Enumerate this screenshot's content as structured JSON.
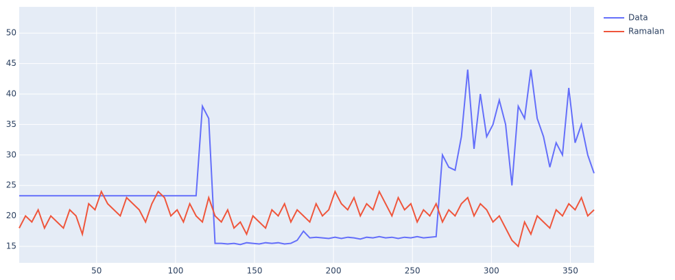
{
  "chart_data": {
    "type": "line",
    "x": [
      1,
      5,
      9,
      13,
      17,
      21,
      25,
      29,
      33,
      37,
      41,
      45,
      49,
      53,
      57,
      61,
      65,
      69,
      73,
      77,
      81,
      85,
      89,
      93,
      97,
      101,
      105,
      109,
      113,
      117,
      121,
      125,
      129,
      133,
      137,
      141,
      145,
      149,
      153,
      157,
      161,
      165,
      169,
      173,
      177,
      181,
      185,
      189,
      193,
      197,
      201,
      205,
      209,
      213,
      217,
      221,
      225,
      229,
      233,
      237,
      241,
      245,
      249,
      253,
      257,
      261,
      265,
      269,
      273,
      277,
      281,
      285,
      289,
      293,
      297,
      301,
      305,
      309,
      313,
      317,
      321,
      325,
      329,
      333,
      337,
      341,
      345,
      349,
      353,
      357,
      361,
      365
    ],
    "series": [
      {
        "name": "Data",
        "color": "#636efa",
        "values": [
          23.3,
          23.3,
          23.3,
          23.3,
          23.3,
          23.3,
          23.3,
          23.3,
          23.3,
          23.3,
          23.3,
          23.3,
          23.3,
          23.3,
          23.3,
          23.3,
          23.3,
          23.3,
          23.3,
          23.3,
          23.3,
          23.3,
          23.3,
          23.3,
          23.3,
          23.3,
          23.3,
          23.3,
          23.3,
          38,
          36,
          15.5,
          15.5,
          15.4,
          15.5,
          15.3,
          15.6,
          15.5,
          15.4,
          15.6,
          15.5,
          15.6,
          15.4,
          15.5,
          16,
          17.5,
          16.4,
          16.5,
          16.4,
          16.3,
          16.5,
          16.3,
          16.5,
          16.4,
          16.2,
          16.5,
          16.4,
          16.6,
          16.4,
          16.5,
          16.3,
          16.5,
          16.4,
          16.6,
          16.4,
          16.5,
          16.6,
          30,
          28,
          27.5,
          33,
          44,
          31,
          40,
          33,
          35,
          39,
          35,
          25,
          38,
          36,
          44,
          36,
          33,
          28,
          32,
          30,
          41,
          32,
          35,
          30,
          27
        ]
      },
      {
        "name": "Ramalan",
        "color": "#ef553b",
        "values": [
          18,
          20,
          19,
          21,
          18,
          20,
          19,
          18,
          21,
          20,
          17,
          22,
          21,
          24,
          22,
          21,
          20,
          23,
          22,
          21,
          19,
          22,
          24,
          23,
          20,
          21,
          19,
          22,
          20,
          19,
          23,
          20,
          19,
          21,
          18,
          19,
          17,
          20,
          19,
          18,
          21,
          20,
          22,
          19,
          21,
          20,
          19,
          22,
          20,
          21,
          24,
          22,
          21,
          23,
          20,
          22,
          21,
          24,
          22,
          20,
          23,
          21,
          22,
          19,
          21,
          20,
          22,
          19,
          21,
          20,
          22,
          23,
          20,
          22,
          21,
          19,
          20,
          18,
          16,
          15,
          19,
          17,
          20,
          19,
          18,
          21,
          20,
          22,
          21,
          23,
          20,
          21
        ]
      }
    ],
    "xlim": [
      1,
      365
    ],
    "ylim": [
      12.3,
      54.3
    ],
    "xticks": [
      50,
      100,
      150,
      200,
      250,
      300,
      350
    ],
    "yticks": [
      15,
      20,
      25,
      30,
      35,
      40,
      45,
      50
    ],
    "grid": true,
    "legend": "top-right"
  }
}
